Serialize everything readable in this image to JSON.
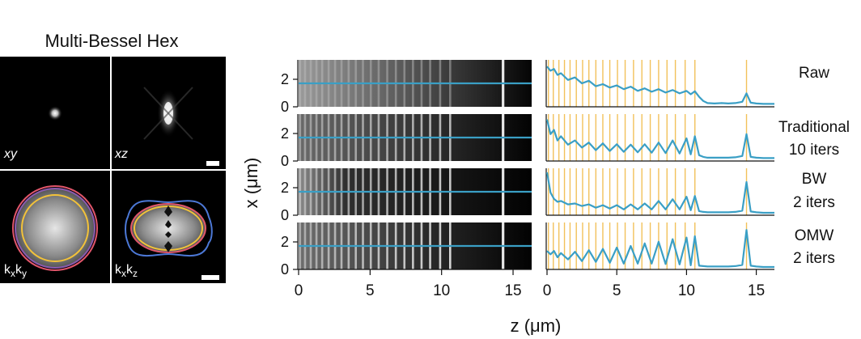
{
  "left_panel": {
    "title": "Multi-Bessel Hex",
    "labels": {
      "xy": "xy",
      "xz": "xz",
      "kxky": "kxky",
      "kxkz": "kxkz"
    }
  },
  "axes": {
    "y_label": "x (μm)",
    "x_label": "z (μm)",
    "y_ticks": [
      "2",
      "0"
    ],
    "x_ticks_images": [
      "0",
      "5",
      "10",
      "15"
    ],
    "x_ticks_profiles": [
      "0",
      "5",
      "10",
      "15"
    ]
  },
  "rows": [
    {
      "label_line1": "Raw",
      "label_line2": ""
    },
    {
      "label_line1": "Traditional",
      "label_line2": "10 iters"
    },
    {
      "label_line1": "BW",
      "label_line2": "2 iters"
    },
    {
      "label_line1": "OMW",
      "label_line2": "2 iters"
    }
  ],
  "colors": {
    "profile": "#3a9fc5",
    "markers": "#f2c15a",
    "psf_circle_outer_red": "#e2566b",
    "psf_circle_purple": "#8a5bb0",
    "psf_circle_yellow": "#f2c23a",
    "psf_lobe_blue": "#4c78d6"
  },
  "chart_data": {
    "type": "line",
    "x_range": [
      0,
      16.3
    ],
    "bead_positions_um": [
      0.1,
      0.45,
      0.85,
      1.25,
      1.65,
      2.1,
      2.55,
      3.0,
      3.5,
      4.0,
      4.5,
      5.05,
      5.6,
      6.2,
      6.8,
      7.4,
      8.0,
      8.6,
      9.2,
      9.9,
      10.6,
      14.3
    ],
    "series": [
      {
        "name": "Raw",
        "x": [
          0.0,
          0.25,
          0.5,
          0.75,
          1.0,
          1.5,
          2.0,
          2.5,
          3.0,
          3.5,
          4.0,
          4.5,
          5.0,
          5.5,
          6.0,
          6.5,
          7.0,
          7.5,
          8.0,
          8.5,
          9.0,
          9.5,
          10.0,
          10.3,
          10.6,
          10.9,
          11.2,
          11.5,
          12.0,
          12.5,
          13.0,
          13.5,
          14.0,
          14.3,
          14.6,
          15.0,
          15.5,
          16.3
        ],
        "y": [
          0.92,
          0.82,
          0.86,
          0.72,
          0.76,
          0.6,
          0.66,
          0.52,
          0.58,
          0.45,
          0.5,
          0.42,
          0.47,
          0.38,
          0.44,
          0.34,
          0.4,
          0.32,
          0.38,
          0.3,
          0.36,
          0.28,
          0.34,
          0.26,
          0.33,
          0.2,
          0.1,
          0.05,
          0.04,
          0.05,
          0.04,
          0.05,
          0.08,
          0.28,
          0.06,
          0.04,
          0.03,
          0.03
        ]
      },
      {
        "name": "Traditional 10 iters",
        "x": [
          0.0,
          0.25,
          0.5,
          0.75,
          1.0,
          1.5,
          2.0,
          2.5,
          3.0,
          3.5,
          4.0,
          4.5,
          5.0,
          5.5,
          6.0,
          6.5,
          7.0,
          7.5,
          8.0,
          8.5,
          9.0,
          9.5,
          10.0,
          10.3,
          10.6,
          10.9,
          11.2,
          11.5,
          12.0,
          12.5,
          13.0,
          13.5,
          14.0,
          14.3,
          14.6,
          15.0,
          15.5,
          16.3
        ],
        "y": [
          0.95,
          0.6,
          0.7,
          0.45,
          0.55,
          0.35,
          0.45,
          0.28,
          0.4,
          0.22,
          0.38,
          0.2,
          0.36,
          0.18,
          0.35,
          0.17,
          0.36,
          0.16,
          0.4,
          0.15,
          0.45,
          0.14,
          0.5,
          0.12,
          0.55,
          0.1,
          0.06,
          0.04,
          0.04,
          0.04,
          0.04,
          0.05,
          0.08,
          0.6,
          0.06,
          0.04,
          0.03,
          0.03
        ]
      },
      {
        "name": "BW 2 iters",
        "x": [
          0.0,
          0.25,
          0.5,
          0.75,
          1.0,
          1.5,
          2.0,
          2.5,
          3.0,
          3.5,
          4.0,
          4.5,
          5.0,
          5.5,
          6.0,
          6.5,
          7.0,
          7.5,
          8.0,
          8.5,
          9.0,
          9.5,
          10.0,
          10.3,
          10.6,
          10.9,
          11.2,
          11.5,
          12.0,
          12.5,
          13.0,
          13.5,
          14.0,
          14.3,
          14.6,
          15.0,
          15.5,
          16.3
        ],
        "y": [
          0.98,
          0.5,
          0.35,
          0.28,
          0.3,
          0.22,
          0.24,
          0.18,
          0.22,
          0.14,
          0.2,
          0.12,
          0.2,
          0.1,
          0.22,
          0.1,
          0.24,
          0.1,
          0.3,
          0.1,
          0.34,
          0.1,
          0.4,
          0.08,
          0.42,
          0.06,
          0.04,
          0.03,
          0.03,
          0.03,
          0.03,
          0.04,
          0.07,
          0.75,
          0.05,
          0.03,
          0.02,
          0.02
        ]
      },
      {
        "name": "OMW 2 iters",
        "x": [
          0.0,
          0.25,
          0.5,
          0.75,
          1.0,
          1.5,
          2.0,
          2.5,
          3.0,
          3.5,
          4.0,
          4.5,
          5.0,
          5.5,
          6.0,
          6.5,
          7.0,
          7.5,
          8.0,
          8.5,
          9.0,
          9.5,
          10.0,
          10.3,
          10.6,
          10.9,
          11.2,
          11.5,
          12.0,
          12.5,
          13.0,
          13.5,
          14.0,
          14.3,
          14.6,
          15.0,
          15.5,
          16.3
        ],
        "y": [
          0.4,
          0.32,
          0.4,
          0.25,
          0.35,
          0.2,
          0.38,
          0.16,
          0.42,
          0.14,
          0.45,
          0.12,
          0.48,
          0.1,
          0.52,
          0.1,
          0.58,
          0.1,
          0.62,
          0.09,
          0.68,
          0.08,
          0.72,
          0.06,
          0.75,
          0.05,
          0.04,
          0.03,
          0.03,
          0.03,
          0.03,
          0.04,
          0.07,
          0.9,
          0.05,
          0.03,
          0.02,
          0.02
        ]
      }
    ]
  }
}
